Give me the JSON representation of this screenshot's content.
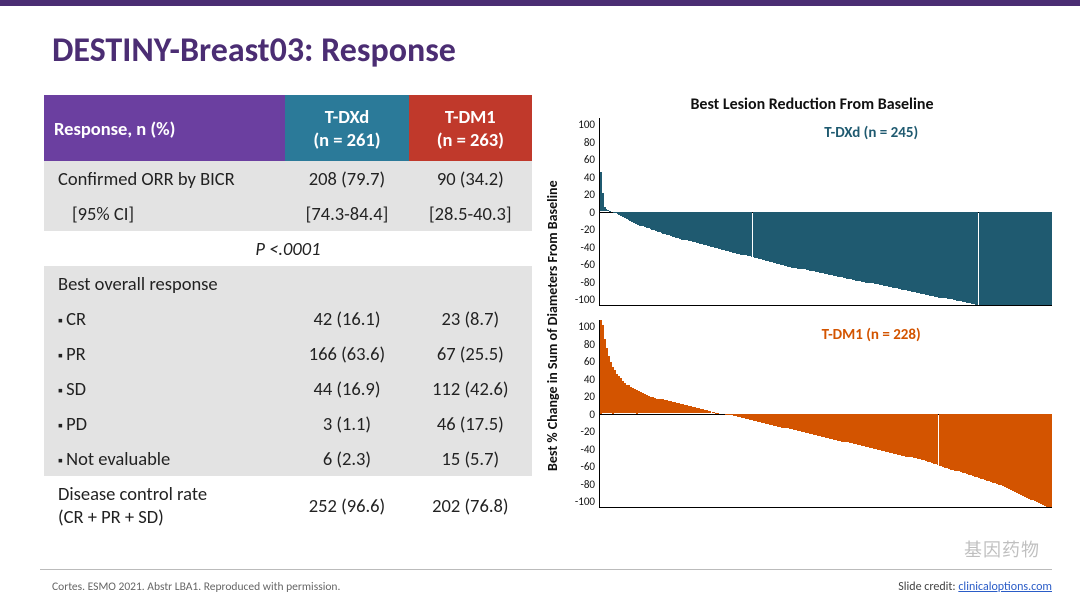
{
  "title": "DESTINY-Breast03: Response",
  "table": {
    "header_bg": {
      "col1": "#6b3fa0",
      "col2": "#2b7a99",
      "col3": "#c0392b"
    },
    "row_alt_bg": "#e3e3e3",
    "row_bg": "#ffffff",
    "columns": [
      "Response, n (%)",
      "T-DXd\n(n = 261)",
      "T-DM1\n(n = 263)"
    ],
    "rows": [
      {
        "label": "Confirmed ORR by BICR",
        "c2": "208 (79.7)",
        "c3": "90 (34.2)",
        "bg": "#e3e3e3"
      },
      {
        "label": "  [95% CI]",
        "c2": "[74.3-84.4]",
        "c3": "[28.5-40.3]",
        "bg": "#e3e3e3",
        "sub": true
      },
      {
        "pval": "P <.0001",
        "bg": "#ffffff"
      },
      {
        "label": "Best overall response",
        "c2": "",
        "c3": "",
        "bg": "#e3e3e3"
      },
      {
        "label": "CR",
        "c2": "42 (16.1)",
        "c3": "23 (8.7)",
        "bg": "#e3e3e3",
        "bullet": true
      },
      {
        "label": "PR",
        "c2": "166 (63.6)",
        "c3": "67 (25.5)",
        "bg": "#e3e3e3",
        "bullet": true
      },
      {
        "label": "SD",
        "c2": "44 (16.9)",
        "c3": "112 (42.6)",
        "bg": "#e3e3e3",
        "bullet": true
      },
      {
        "label": "PD",
        "c2": "3 (1.1)",
        "c3": "46 (17.5)",
        "bg": "#e3e3e3",
        "bullet": true
      },
      {
        "label": "Not evaluable",
        "c2": "6 (2.3)",
        "c3": "15 (5.7)",
        "bg": "#e3e3e3",
        "bullet": true
      },
      {
        "label": "Disease control rate\n(CR + PR + SD)",
        "c2": "252 (96.6)",
        "c3": "202 (76.8)",
        "bg": "#ffffff"
      }
    ]
  },
  "chart": {
    "title": "Best Lesion Reduction From Baseline",
    "ylabel": "Best % Change in Sum of Diameters From Baseline",
    "ylim": [
      -100,
      100
    ],
    "yticks": [
      100,
      80,
      60,
      40,
      20,
      0,
      -20,
      -40,
      -60,
      -80,
      -100
    ],
    "panels": [
      {
        "label": "T-DXd (n = 245)",
        "label_color": "#1f5a70",
        "bar_color": "#1f5a70",
        "n": 245,
        "values": [
          42,
          20,
          5,
          3,
          2,
          1,
          0,
          -1,
          -2,
          -3,
          -4,
          -5,
          -6,
          -7,
          -8,
          -9,
          -10,
          -11,
          -12,
          -13,
          -14,
          -15,
          -15,
          -16,
          -17,
          -18,
          -18,
          -19,
          -20,
          -20,
          -21,
          -22,
          -22,
          -23,
          -24,
          -24,
          -25,
          -25,
          -26,
          -27,
          -27,
          -28,
          -28,
          -29,
          -30,
          -30,
          -31,
          -31,
          -32,
          -32,
          -33,
          -33,
          -34,
          -34,
          -35,
          -35,
          -36,
          -36,
          -37,
          -37,
          -38,
          -38,
          -39,
          -39,
          -40,
          -40,
          -41,
          -41,
          -42,
          -42,
          -43,
          -43,
          -44,
          -44,
          -45,
          -45,
          -46,
          -46,
          -47,
          -47,
          -48,
          -48,
          -49,
          -49,
          -50,
          -50,
          -51,
          -51,
          -52,
          -52,
          -53,
          -53,
          -54,
          -54,
          -55,
          -55,
          -56,
          -56,
          -57,
          -57,
          -58,
          -58,
          -59,
          -59,
          -60,
          -60,
          -60,
          -61,
          -61,
          -62,
          -62,
          -62,
          -63,
          -63,
          -64,
          -64,
          -64,
          -65,
          -65,
          -66,
          -66,
          -66,
          -67,
          -67,
          -68,
          -68,
          -68,
          -69,
          -69,
          -70,
          -70,
          -70,
          -71,
          -71,
          -72,
          -72,
          -72,
          -73,
          -73,
          -74,
          -74,
          -74,
          -75,
          -75,
          -76,
          -76,
          -76,
          -77,
          -77,
          -78,
          -78,
          -78,
          -79,
          -79,
          -80,
          -80,
          -80,
          -81,
          -81,
          -82,
          -82,
          -82,
          -83,
          -83,
          -84,
          -84,
          -84,
          -85,
          -85,
          -86,
          -86,
          -86,
          -87,
          -87,
          -88,
          -88,
          -88,
          -89,
          -89,
          -90,
          -90,
          -90,
          -91,
          -91,
          -92,
          -92,
          -92,
          -93,
          -93,
          -94,
          -94,
          -94,
          -95,
          -95,
          -96,
          -96,
          -96,
          -97,
          -97,
          -98,
          -98,
          -98,
          -99,
          -99,
          -100,
          -100,
          -100,
          -100,
          -100,
          -100,
          -100,
          -100,
          -100,
          -100,
          -100,
          -100,
          -100,
          -100,
          -100,
          -100,
          -100,
          -100,
          -100,
          -100,
          -100,
          -100,
          -100,
          -100,
          -100,
          -100,
          -100,
          -100,
          -100,
          -100,
          -100,
          -100,
          -100,
          -100,
          -100,
          -100,
          -100,
          -100,
          -100,
          -100,
          -100,
          -100
        ]
      },
      {
        "label": "T-DM1 (n = 228)",
        "label_color": "#d35400",
        "bar_color": "#d35400",
        "n": 228,
        "values": [
          100,
          95,
          80,
          70,
          62,
          55,
          50,
          46,
          42,
          40,
          38,
          35,
          33,
          31,
          30,
          28,
          27,
          26,
          25,
          24,
          23,
          22,
          21,
          20,
          19,
          18,
          18,
          17,
          16,
          16,
          15,
          15,
          14,
          14,
          13,
          13,
          12,
          12,
          11,
          11,
          10,
          10,
          9,
          9,
          8,
          8,
          7,
          7,
          6,
          6,
          5,
          5,
          4,
          4,
          3,
          3,
          2,
          2,
          1,
          1,
          0,
          0,
          0,
          -1,
          -1,
          -2,
          -2,
          -3,
          -3,
          -4,
          -4,
          -5,
          -5,
          -6,
          -6,
          -7,
          -7,
          -8,
          -8,
          -9,
          -9,
          -10,
          -10,
          -11,
          -11,
          -12,
          -12,
          -13,
          -13,
          -14,
          -14,
          -15,
          -15,
          -16,
          -16,
          -17,
          -17,
          -18,
          -18,
          -19,
          -19,
          -20,
          -20,
          -21,
          -21,
          -22,
          -22,
          -23,
          -23,
          -24,
          -24,
          -25,
          -25,
          -26,
          -26,
          -27,
          -27,
          -28,
          -28,
          -29,
          -29,
          -30,
          -30,
          -31,
          -31,
          -32,
          -32,
          -33,
          -33,
          -34,
          -34,
          -35,
          -35,
          -36,
          -36,
          -37,
          -37,
          -38,
          -38,
          -39,
          -39,
          -40,
          -40,
          -41,
          -41,
          -42,
          -42,
          -43,
          -43,
          -44,
          -44,
          -45,
          -45,
          -46,
          -46,
          -47,
          -47,
          -48,
          -48,
          -49,
          -49,
          -50,
          -50,
          -51,
          -52,
          -52,
          -53,
          -54,
          -54,
          -55,
          -56,
          -56,
          -57,
          -58,
          -58,
          -59,
          -60,
          -60,
          -61,
          -62,
          -62,
          -63,
          -64,
          -64,
          -65,
          -66,
          -66,
          -67,
          -68,
          -68,
          -69,
          -70,
          -70,
          -71,
          -72,
          -72,
          -73,
          -74,
          -74,
          -75,
          -76,
          -77,
          -78,
          -79,
          -80,
          -81,
          -82,
          -83,
          -84,
          -85,
          -86,
          -87,
          -88,
          -89,
          -90,
          -91,
          -92,
          -93,
          -94,
          -95,
          -96,
          -97,
          -98,
          -99,
          -100,
          -100,
          -100
        ]
      }
    ]
  },
  "footnote": "Cortes. ESMO 2021. Abstr LBA1. Reproduced with permission.",
  "credit": {
    "label": "Slide credit: ",
    "link": "clinicaloptions.com"
  },
  "watermark": "基因药物"
}
